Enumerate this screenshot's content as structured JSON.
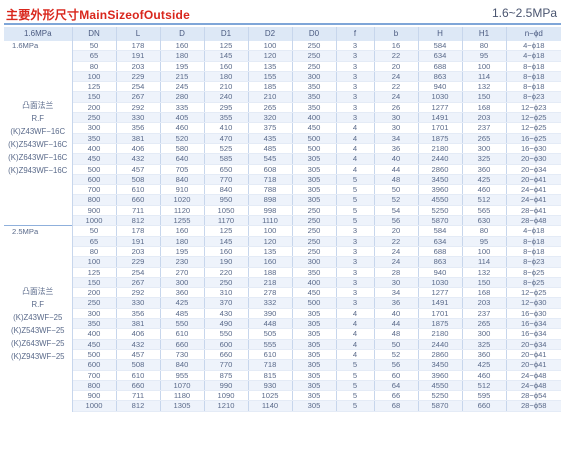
{
  "title": "主要外形尺寸MainSizeofOutside",
  "pressure_range": "1.6~2.5MPa",
  "headers": [
    "1.6MPa",
    "DN",
    "L",
    "D",
    "D1",
    "D2",
    "D0",
    "f",
    "b",
    "H",
    "H1",
    "n−ϕd"
  ],
  "groups": [
    {
      "pressure": "1.6MPa",
      "labels": [
        "凸面法兰",
        "R.F",
        "(K)Z43WF−16C",
        "(K)Z543WF−16C",
        "(K)Z643WF−16C",
        "(K)Z943WF−16C"
      ],
      "rows": [
        [
          "50",
          "178",
          "160",
          "125",
          "100",
          "250",
          "3",
          "16",
          "584",
          "80",
          "4−ϕ18"
        ],
        [
          "65",
          "191",
          "180",
          "145",
          "120",
          "250",
          "3",
          "22",
          "634",
          "95",
          "4−ϕ18"
        ],
        [
          "80",
          "203",
          "195",
          "160",
          "135",
          "250",
          "3",
          "20",
          "688",
          "100",
          "8−ϕ18"
        ],
        [
          "100",
          "229",
          "215",
          "180",
          "155",
          "300",
          "3",
          "24",
          "863",
          "114",
          "8−ϕ18"
        ],
        [
          "125",
          "254",
          "245",
          "210",
          "185",
          "350",
          "3",
          "22",
          "940",
          "132",
          "8−ϕ18"
        ],
        [
          "150",
          "267",
          "280",
          "240",
          "210",
          "350",
          "3",
          "24",
          "1030",
          "150",
          "8−ϕ23"
        ],
        [
          "200",
          "292",
          "335",
          "295",
          "265",
          "350",
          "3",
          "26",
          "1277",
          "168",
          "12−ϕ23"
        ],
        [
          "250",
          "330",
          "405",
          "355",
          "320",
          "400",
          "3",
          "30",
          "1491",
          "203",
          "12−ϕ25"
        ],
        [
          "300",
          "356",
          "460",
          "410",
          "375",
          "450",
          "4",
          "30",
          "1701",
          "237",
          "12−ϕ25"
        ],
        [
          "350",
          "381",
          "520",
          "470",
          "435",
          "500",
          "4",
          "34",
          "1875",
          "265",
          "16−ϕ25"
        ],
        [
          "400",
          "406",
          "580",
          "525",
          "485",
          "500",
          "4",
          "36",
          "2180",
          "300",
          "16−ϕ30"
        ],
        [
          "450",
          "432",
          "640",
          "585",
          "545",
          "305",
          "4",
          "40",
          "2440",
          "325",
          "20−ϕ30"
        ],
        [
          "500",
          "457",
          "705",
          "650",
          "608",
          "305",
          "4",
          "44",
          "2860",
          "360",
          "20−ϕ34"
        ],
        [
          "600",
          "508",
          "840",
          "770",
          "718",
          "305",
          "5",
          "48",
          "3450",
          "425",
          "20−ϕ41"
        ],
        [
          "700",
          "610",
          "910",
          "840",
          "788",
          "305",
          "5",
          "50",
          "3960",
          "460",
          "24−ϕ41"
        ],
        [
          "800",
          "660",
          "1020",
          "950",
          "898",
          "305",
          "5",
          "52",
          "4550",
          "512",
          "24−ϕ41"
        ],
        [
          "900",
          "711",
          "1120",
          "1050",
          "998",
          "250",
          "5",
          "54",
          "5250",
          "565",
          "28−ϕ41"
        ],
        [
          "1000",
          "812",
          "1255",
          "1170",
          "1110",
          "250",
          "5",
          "56",
          "5870",
          "630",
          "28−ϕ48"
        ]
      ]
    },
    {
      "pressure": "2.5MPa",
      "labels": [
        "凸面法兰",
        "R.F",
        "(K)Z43WF−25",
        "(K)Z543WF−25",
        "(K)Z643WF−25",
        "(K)Z943WF−25"
      ],
      "rows": [
        [
          "50",
          "178",
          "160",
          "125",
          "100",
          "250",
          "3",
          "20",
          "584",
          "80",
          "4−ϕ18"
        ],
        [
          "65",
          "191",
          "180",
          "145",
          "120",
          "250",
          "3",
          "22",
          "634",
          "95",
          "8−ϕ18"
        ],
        [
          "80",
          "203",
          "195",
          "160",
          "135",
          "250",
          "3",
          "24",
          "688",
          "100",
          "8−ϕ18"
        ],
        [
          "100",
          "229",
          "230",
          "190",
          "160",
          "300",
          "3",
          "24",
          "863",
          "114",
          "8−ϕ23"
        ],
        [
          "125",
          "254",
          "270",
          "220",
          "188",
          "350",
          "3",
          "28",
          "940",
          "132",
          "8−ϕ25"
        ],
        [
          "150",
          "267",
          "300",
          "250",
          "218",
          "400",
          "3",
          "30",
          "1030",
          "150",
          "8−ϕ25"
        ],
        [
          "200",
          "292",
          "360",
          "310",
          "278",
          "450",
          "3",
          "34",
          "1277",
          "168",
          "12−ϕ25"
        ],
        [
          "250",
          "330",
          "425",
          "370",
          "332",
          "500",
          "3",
          "36",
          "1491",
          "203",
          "12−ϕ30"
        ],
        [
          "300",
          "356",
          "485",
          "430",
          "390",
          "305",
          "4",
          "40",
          "1701",
          "237",
          "16−ϕ30"
        ],
        [
          "350",
          "381",
          "550",
          "490",
          "448",
          "305",
          "4",
          "44",
          "1875",
          "265",
          "16−ϕ34"
        ],
        [
          "400",
          "406",
          "610",
          "550",
          "505",
          "305",
          "4",
          "48",
          "2180",
          "300",
          "16−ϕ34"
        ],
        [
          "450",
          "432",
          "660",
          "600",
          "555",
          "305",
          "4",
          "50",
          "2440",
          "325",
          "20−ϕ34"
        ],
        [
          "500",
          "457",
          "730",
          "660",
          "610",
          "305",
          "4",
          "52",
          "2860",
          "360",
          "20−ϕ41"
        ],
        [
          "600",
          "508",
          "840",
          "770",
          "718",
          "305",
          "5",
          "56",
          "3450",
          "425",
          "20−ϕ41"
        ],
        [
          "700",
          "610",
          "955",
          "875",
          "815",
          "305",
          "5",
          "60",
          "3960",
          "460",
          "24−ϕ48"
        ],
        [
          "800",
          "660",
          "1070",
          "990",
          "930",
          "305",
          "5",
          "64",
          "4550",
          "512",
          "24−ϕ48"
        ],
        [
          "900",
          "711",
          "1180",
          "1090",
          "1025",
          "305",
          "5",
          "66",
          "5250",
          "595",
          "28−ϕ54"
        ],
        [
          "1000",
          "812",
          "1305",
          "1210",
          "1140",
          "305",
          "5",
          "68",
          "5870",
          "660",
          "28−ϕ58"
        ]
      ]
    }
  ]
}
